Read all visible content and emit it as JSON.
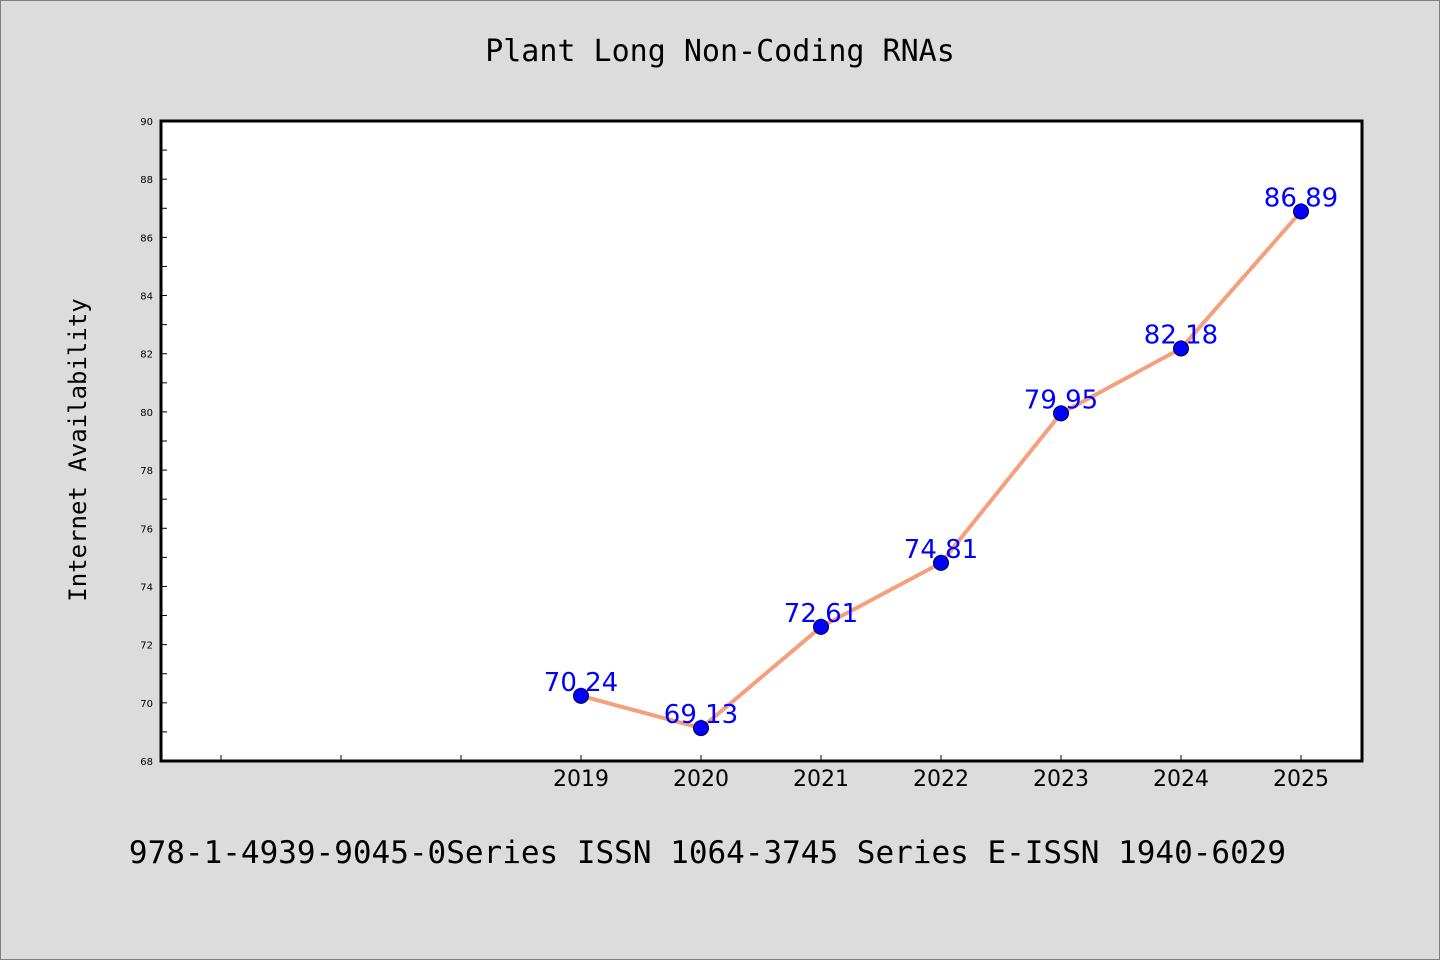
{
  "chart_data": {
    "type": "line",
    "title": "Plant Long Non-Coding RNAs",
    "xlabel": "",
    "ylabel": "Internet Availability",
    "categories": [
      "2019",
      "2020",
      "2021",
      "2022",
      "2023",
      "2024",
      "2025"
    ],
    "series": [
      {
        "values": [
          70.24,
          69.13,
          72.61,
          74.81,
          79.95,
          82.18,
          86.89
        ],
        "labels": [
          "70.24",
          "69.13",
          "72.61",
          "74.81",
          "79.95",
          "82.18",
          "86.89"
        ]
      }
    ],
    "ylim": [
      68,
      90
    ],
    "yticks": [
      "68",
      "70",
      "72",
      "74",
      "76",
      "78",
      "80",
      "82",
      "84",
      "86",
      "88",
      "90"
    ],
    "grid": false,
    "legend": "none",
    "colors": {
      "line": "#f4a07f",
      "marker": "#0000ff",
      "data_label": "#0000ff",
      "background": "#dcdcdc",
      "plot_area": "#ffffff"
    }
  },
  "footer": {
    "text": "978-1-4939-9045-0Series ISSN 1064-3745 Series E-ISSN 1940-6029"
  }
}
